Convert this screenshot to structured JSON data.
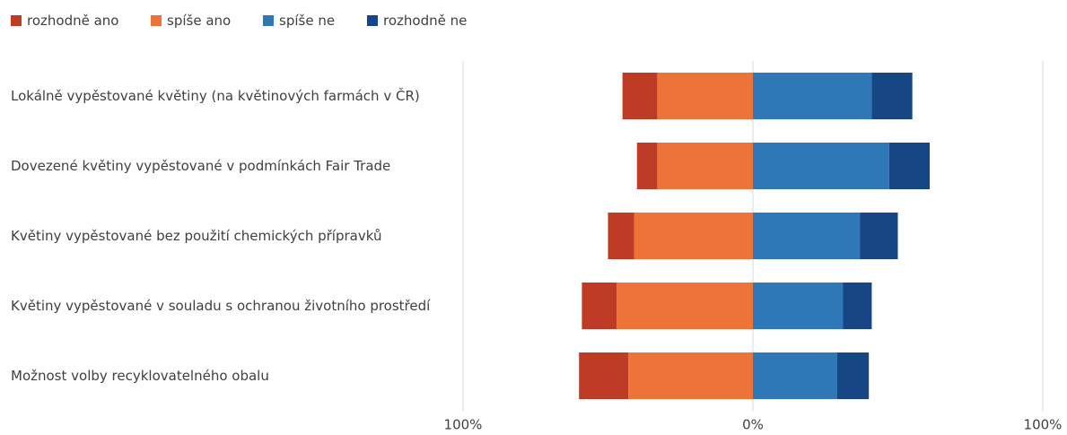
{
  "chart_data": {
    "type": "diverging_bar",
    "categories": [
      "Lokálně vypěstované květiny (na květinových farmách v ČR)",
      "Dovezené květiny vypěstované v podmínkách Fair Trade",
      "Květiny vypěstované bez použití chemických přípravků",
      "Květiny vypěstované v souladu s ochranou životního prostředí",
      "Možnost volby recyklovatelného obalu"
    ],
    "series": [
      {
        "name": "rozhodně ano",
        "color": "#be3b26",
        "values": [
          -12,
          -7,
          -9,
          -12,
          -17
        ]
      },
      {
        "name": "spíše ano",
        "color": "#ed7338",
        "values": [
          -33,
          -33,
          -41,
          -47,
          -43
        ]
      },
      {
        "name": "spíše ne",
        "color": "#2e78b8",
        "values": [
          41,
          47,
          37,
          31,
          29
        ]
      },
      {
        "name": "rozhodně ne",
        "color": "#164784",
        "values": [
          14,
          14,
          13,
          10,
          11
        ]
      }
    ],
    "xlim": [
      -100,
      100
    ],
    "xticks": [
      {
        "value": -100,
        "label": "100%"
      },
      {
        "value": 0,
        "label": "0%"
      },
      {
        "value": 100,
        "label": "100%"
      }
    ],
    "grid": true,
    "legend": "top"
  }
}
